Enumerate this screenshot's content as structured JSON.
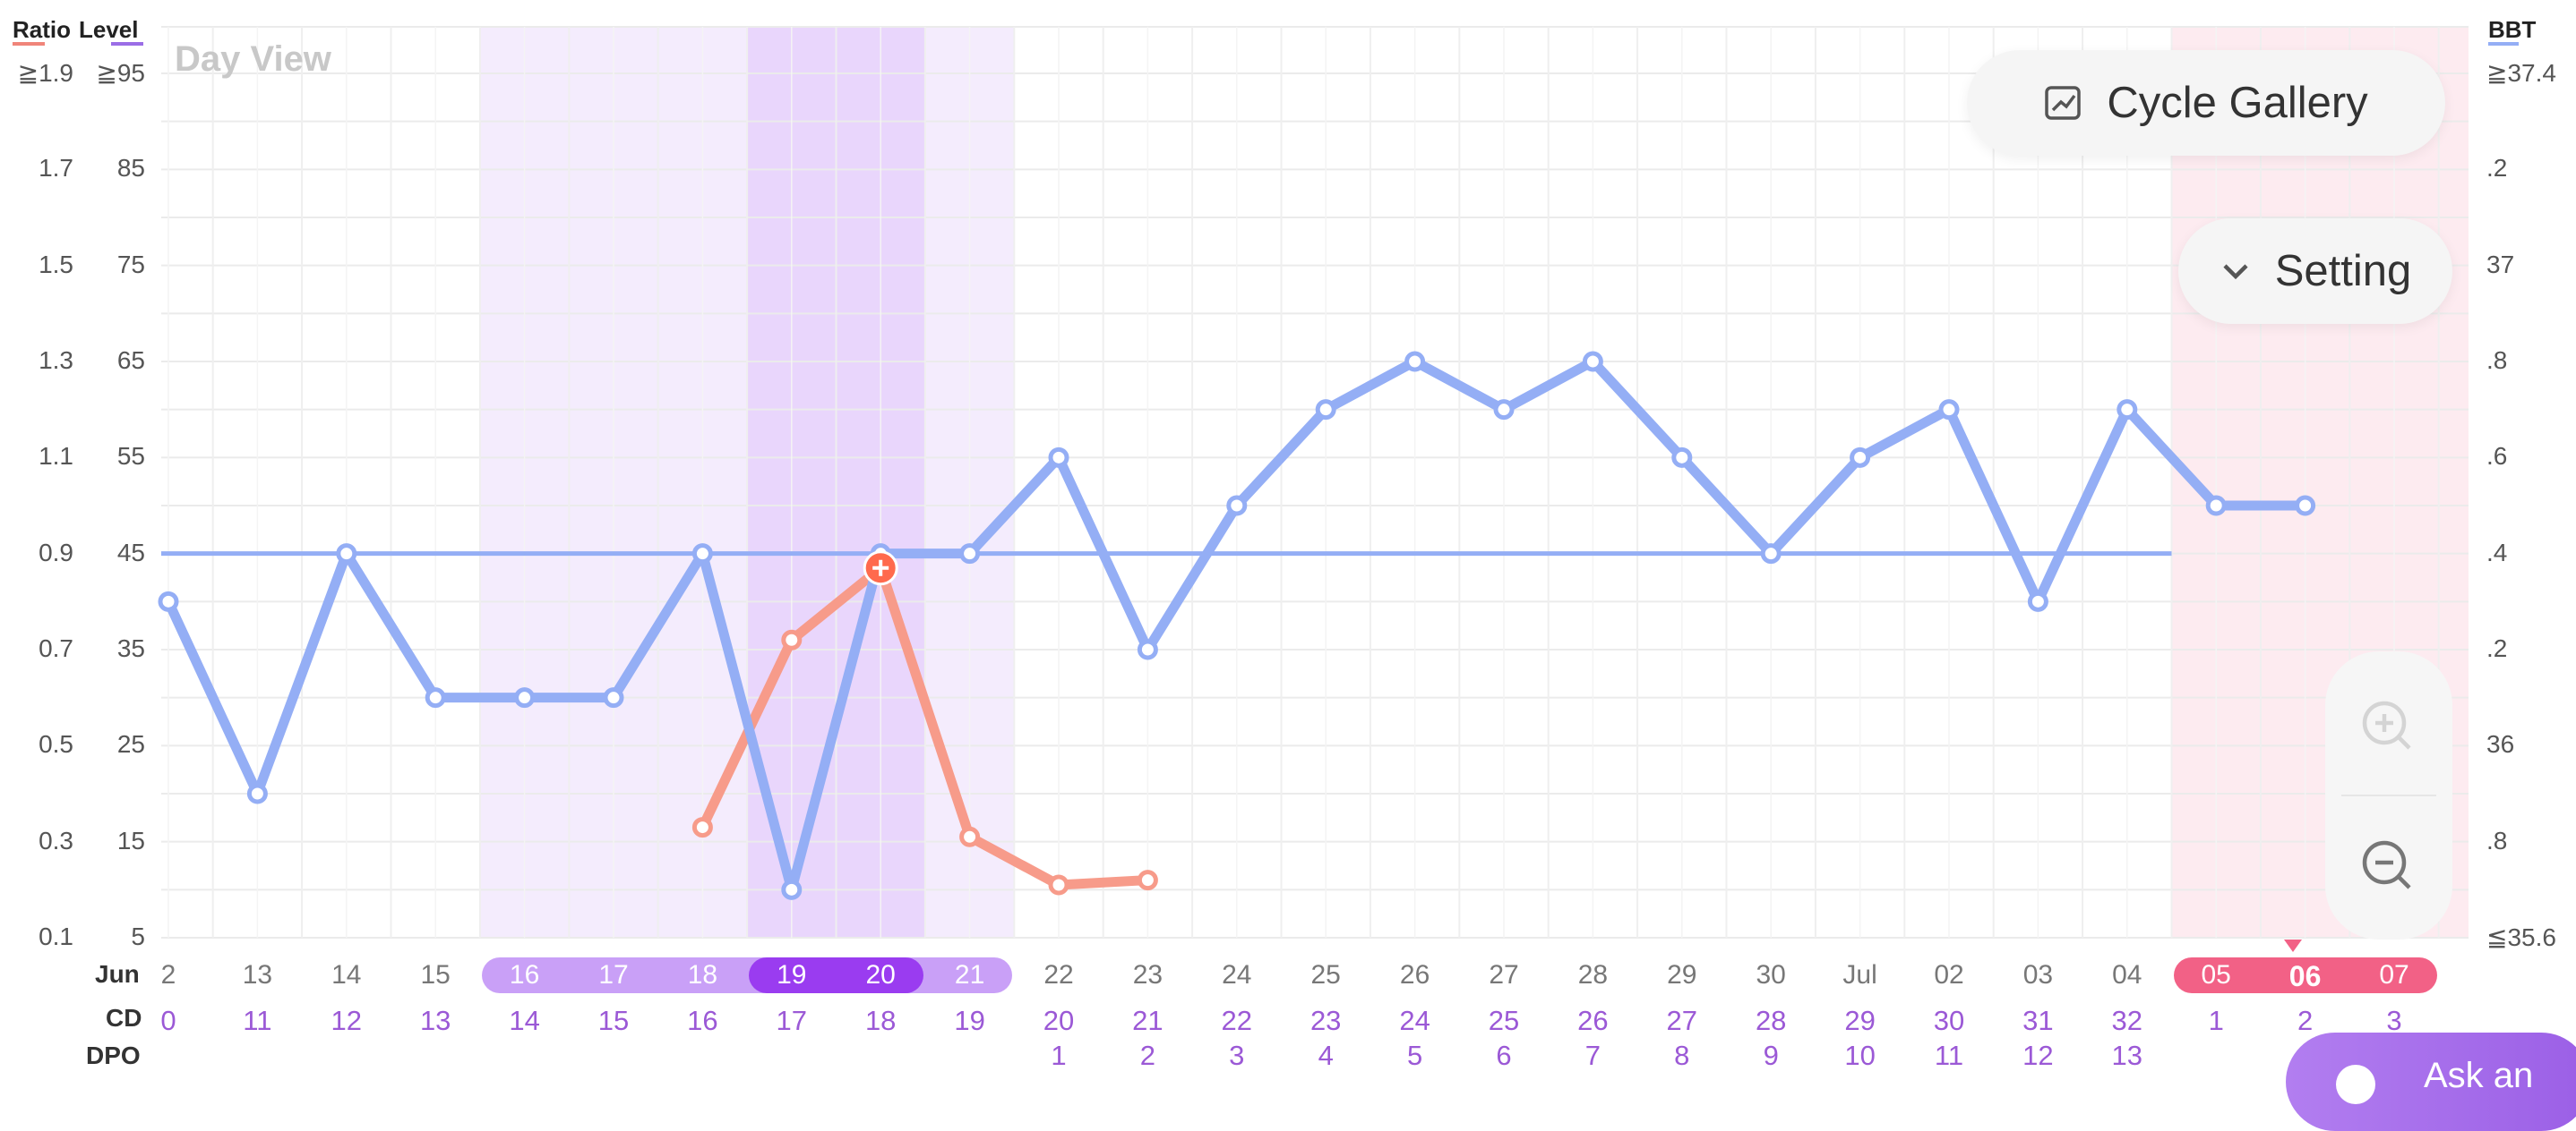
{
  "view_label": "Day View",
  "axes": {
    "ratio_label": "Ratio",
    "level_label": "Level",
    "bbt_label": "BBT",
    "ratio_ticks": [
      "≧1.9",
      "1.7",
      "1.5",
      "1.3",
      "1.1",
      "0.9",
      "0.7",
      "0.5",
      "0.3",
      "0.1"
    ],
    "level_ticks": [
      "≧95",
      "85",
      "75",
      "65",
      "55",
      "45",
      "35",
      "25",
      "15",
      "5"
    ],
    "bbt_ticks": [
      "≧37.4",
      ".2",
      "37",
      ".8",
      ".6",
      ".4",
      ".2",
      "36",
      ".8",
      "≦35.6"
    ]
  },
  "rows": {
    "month_label": "Jun",
    "cd_label": "CD",
    "dpo_label": "DPO"
  },
  "days": [
    {
      "date": "2",
      "cd": "0",
      "dpo": ""
    },
    {
      "date": "13",
      "cd": "11",
      "dpo": ""
    },
    {
      "date": "14",
      "cd": "12",
      "dpo": ""
    },
    {
      "date": "15",
      "cd": "13",
      "dpo": ""
    },
    {
      "date": "16",
      "cd": "14",
      "dpo": ""
    },
    {
      "date": "17",
      "cd": "15",
      "dpo": ""
    },
    {
      "date": "18",
      "cd": "16",
      "dpo": ""
    },
    {
      "date": "19",
      "cd": "17",
      "dpo": ""
    },
    {
      "date": "20",
      "cd": "18",
      "dpo": ""
    },
    {
      "date": "21",
      "cd": "19",
      "dpo": ""
    },
    {
      "date": "22",
      "cd": "20",
      "dpo": "1"
    },
    {
      "date": "23",
      "cd": "21",
      "dpo": "2"
    },
    {
      "date": "24",
      "cd": "22",
      "dpo": "3"
    },
    {
      "date": "25",
      "cd": "23",
      "dpo": "4"
    },
    {
      "date": "26",
      "cd": "24",
      "dpo": "5"
    },
    {
      "date": "27",
      "cd": "25",
      "dpo": "6"
    },
    {
      "date": "28",
      "cd": "26",
      "dpo": "7"
    },
    {
      "date": "29",
      "cd": "27",
      "dpo": "8"
    },
    {
      "date": "30",
      "cd": "28",
      "dpo": "9"
    },
    {
      "date": "Jul",
      "cd": "29",
      "dpo": "10"
    },
    {
      "date": "02",
      "cd": "30",
      "dpo": "11"
    },
    {
      "date": "03",
      "cd": "31",
      "dpo": "12"
    },
    {
      "date": "04",
      "cd": "32",
      "dpo": "13"
    },
    {
      "date": "05",
      "cd": "1",
      "dpo": ""
    },
    {
      "date": "06",
      "cd": "2",
      "dpo": ""
    },
    {
      "date": "07",
      "cd": "3",
      "dpo": ""
    }
  ],
  "buttons": {
    "cycle_gallery": "Cycle Gallery",
    "setting": "Setting",
    "ask": "Ask an"
  },
  "colors": {
    "bbt_line": "#94aef5",
    "ratio_line": "#f79b8a",
    "level_line": "#9b6ee6",
    "fertile_light": "#f4ecfd",
    "fertile_peak": "#e9d6fc",
    "period": "#fdebf0",
    "period_pill": "#f26186",
    "pill_light": "#c9a0f7",
    "pill_dark": "#9a3cf0",
    "ovulation_marker": "#ff6a4d"
  },
  "chart_data": {
    "type": "line",
    "x": [
      "2",
      "13",
      "14",
      "15",
      "16",
      "17",
      "18",
      "19",
      "20",
      "21",
      "22",
      "23",
      "24",
      "25",
      "26",
      "27",
      "28",
      "29",
      "30",
      "Jul",
      "02",
      "03",
      "04",
      "05",
      "06",
      "07"
    ],
    "series": [
      {
        "name": "BBT",
        "axis": "right",
        "values": [
          36.3,
          35.9,
          36.4,
          36.1,
          36.1,
          36.1,
          36.4,
          35.7,
          36.4,
          36.4,
          36.6,
          36.2,
          36.5,
          36.7,
          36.8,
          36.7,
          36.8,
          36.6,
          36.4,
          36.6,
          36.7,
          36.3,
          36.7,
          36.5,
          36.5,
          null
        ]
      },
      {
        "name": "Ratio",
        "axis": "left",
        "values": [
          null,
          null,
          null,
          null,
          null,
          null,
          0.33,
          0.72,
          0.87,
          0.31,
          0.21,
          0.22,
          null,
          null,
          null,
          null,
          null,
          null,
          null,
          null,
          null,
          null,
          null,
          null,
          null,
          null
        ]
      }
    ],
    "coverline": 36.4,
    "ratio_ylim": [
      0.1,
      1.9
    ],
    "level_ylim": [
      5,
      95
    ],
    "bbt_ylim": [
      35.6,
      37.4
    ],
    "fertile_window": [
      "16",
      "21"
    ],
    "peak_days": [
      "19",
      "20"
    ],
    "period_days": [
      "05",
      "06",
      "07"
    ],
    "today": "06",
    "grid": true
  }
}
